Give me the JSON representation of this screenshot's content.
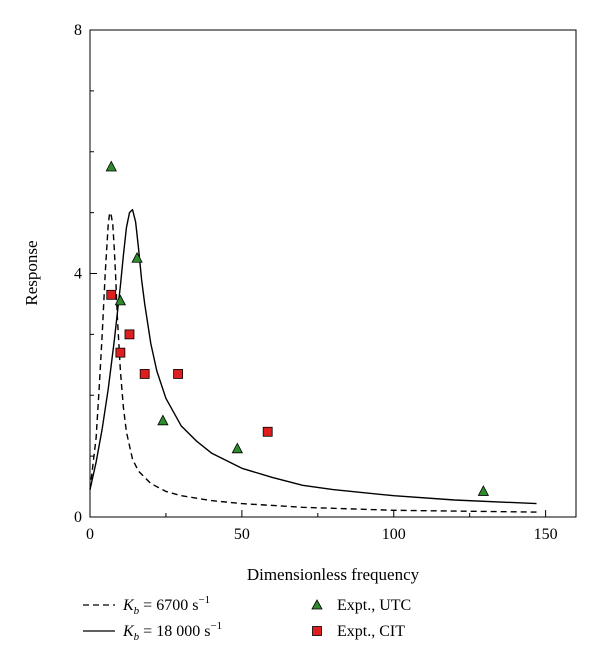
{
  "chart_data": {
    "type": "line",
    "xlabel": "Dimensionless frequency",
    "ylabel": "Response",
    "xlim": [
      0,
      160
    ],
    "ylim": [
      0,
      8
    ],
    "x_ticks": [
      0,
      50,
      100,
      150
    ],
    "y_ticks": [
      0,
      4,
      8
    ],
    "grid": false,
    "legend_position": "bottom",
    "lines": [
      {
        "legend_label": "6700 s",
        "legend_sym": "K",
        "legend_sub": "b",
        "legend_sup": "−1",
        "legend_eq": " = ",
        "style": "dashed",
        "color": "#000000",
        "x": [
          0,
          2,
          3,
          4,
          5,
          6,
          6.5,
          7,
          7.5,
          8,
          8.5,
          9,
          10,
          11,
          12,
          14,
          16,
          20,
          25,
          30,
          40,
          50,
          70,
          100,
          147
        ],
        "y": [
          0.45,
          1.3,
          2.1,
          3.0,
          4.0,
          4.8,
          5.0,
          4.95,
          4.8,
          4.4,
          3.9,
          3.3,
          2.4,
          1.8,
          1.4,
          0.95,
          0.75,
          0.55,
          0.42,
          0.35,
          0.27,
          0.22,
          0.16,
          0.11,
          0.08
        ]
      },
      {
        "legend_label": "18 000 s",
        "legend_sym": "K",
        "legend_sub": "b",
        "legend_sup": "−1",
        "legend_eq": " = ",
        "style": "solid",
        "color": "#000000",
        "x": [
          0,
          2,
          4,
          6,
          8,
          10,
          11,
          12,
          13,
          14,
          15,
          16,
          17,
          18,
          20,
          22,
          25,
          30,
          35,
          40,
          50,
          60,
          70,
          80,
          100,
          120,
          147
        ],
        "y": [
          0.45,
          0.9,
          1.45,
          2.1,
          2.9,
          3.8,
          4.3,
          4.75,
          5.0,
          5.05,
          4.85,
          4.4,
          3.9,
          3.5,
          2.85,
          2.4,
          1.95,
          1.5,
          1.25,
          1.05,
          0.8,
          0.65,
          0.52,
          0.45,
          0.35,
          0.28,
          0.22
        ]
      }
    ],
    "scatter_series": [
      {
        "name": "Expt., UTC",
        "marker": "triangle",
        "color": "#2e8b2e",
        "x": [
          7,
          10,
          15.5,
          24,
          48.5,
          129.5
        ],
        "y": [
          5.75,
          3.55,
          4.25,
          1.58,
          1.12,
          0.42
        ]
      },
      {
        "name": "Expt., CIT",
        "marker": "square",
        "color": "#dd1f1f",
        "x": [
          7,
          10,
          13,
          18,
          29,
          58.5
        ],
        "y": [
          3.65,
          2.7,
          3.0,
          2.35,
          2.35,
          1.4
        ]
      }
    ]
  }
}
